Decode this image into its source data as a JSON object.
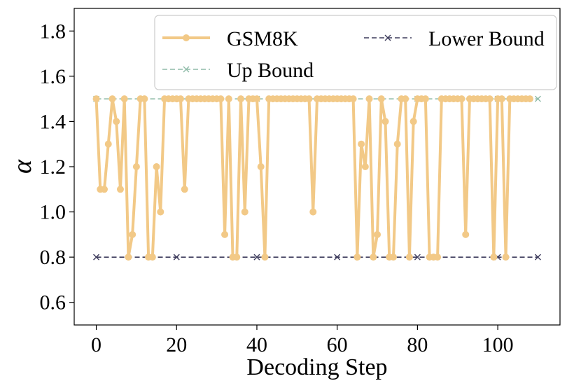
{
  "chart_data": {
    "type": "line",
    "title": "",
    "xlabel": "Decoding Step",
    "ylabel": "α",
    "xlim": [
      -5.5,
      115.5
    ],
    "ylim": [
      0.5,
      1.9
    ],
    "xticks": [
      0,
      20,
      40,
      60,
      80,
      100
    ],
    "yticks": [
      0.6,
      0.8,
      1.0,
      1.2,
      1.4,
      1.6,
      1.8
    ],
    "xtick_labels": [
      "0",
      "20",
      "40",
      "60",
      "80",
      "100"
    ],
    "ytick_labels": [
      "0.6",
      "0.8",
      "1.0",
      "1.2",
      "1.4",
      "1.6",
      "1.8"
    ],
    "grid": false,
    "legend_position": "upper-right",
    "series": [
      {
        "name": "GSM8K",
        "color": "#F2C987",
        "marker": "circle",
        "linestyle": "solid",
        "x": [
          0,
          1,
          2,
          3,
          4,
          5,
          6,
          7,
          8,
          9,
          10,
          11,
          12,
          13,
          14,
          15,
          16,
          17,
          18,
          19,
          20,
          21,
          22,
          23,
          24,
          25,
          26,
          27,
          28,
          29,
          30,
          31,
          32,
          33,
          34,
          35,
          36,
          37,
          38,
          39,
          40,
          41,
          42,
          43,
          44,
          45,
          46,
          47,
          48,
          49,
          50,
          51,
          52,
          53,
          54,
          55,
          56,
          57,
          58,
          59,
          60,
          61,
          62,
          63,
          64,
          65,
          66,
          67,
          68,
          69,
          70,
          71,
          72,
          73,
          74,
          75,
          76,
          77,
          78,
          79,
          80,
          81,
          82,
          83,
          84,
          85,
          86,
          87,
          88,
          89,
          90,
          91,
          92,
          93,
          94,
          95,
          96,
          97,
          98,
          99,
          100,
          101,
          102,
          103,
          104,
          105,
          106,
          107,
          108
        ],
        "y": [
          1.5,
          1.1,
          1.1,
          1.3,
          1.5,
          1.4,
          1.1,
          1.5,
          0.8,
          0.9,
          1.2,
          1.5,
          1.5,
          0.8,
          0.8,
          1.2,
          1.0,
          1.5,
          1.5,
          1.5,
          1.5,
          1.5,
          1.1,
          1.5,
          1.5,
          1.5,
          1.5,
          1.5,
          1.5,
          1.5,
          1.5,
          1.5,
          0.9,
          1.5,
          0.8,
          0.8,
          1.5,
          1.0,
          1.5,
          1.5,
          1.5,
          1.2,
          0.8,
          1.5,
          1.5,
          1.5,
          1.5,
          1.5,
          1.5,
          1.5,
          1.5,
          1.5,
          1.5,
          1.5,
          1.0,
          1.5,
          1.5,
          1.5,
          1.5,
          1.5,
          1.5,
          1.5,
          1.5,
          1.5,
          1.5,
          0.8,
          1.3,
          1.2,
          1.5,
          0.8,
          0.9,
          1.5,
          1.4,
          0.8,
          0.8,
          1.3,
          1.5,
          1.5,
          0.8,
          1.4,
          1.5,
          1.5,
          1.5,
          0.8,
          0.8,
          0.8,
          1.5,
          1.5,
          1.5,
          1.5,
          1.5,
          1.5,
          0.9,
          1.5,
          1.5,
          1.5,
          1.5,
          1.5,
          1.5,
          0.8,
          1.5,
          1.5,
          0.8,
          1.5,
          1.5,
          1.5,
          1.5,
          1.5,
          1.5
        ]
      },
      {
        "name": "Up Bound",
        "color": "#8FBBA8",
        "marker": "x",
        "linestyle": "dashed",
        "x": [
          0,
          20,
          40,
          60,
          80,
          100,
          110
        ],
        "y": [
          1.5,
          1.5,
          1.5,
          1.5,
          1.5,
          1.5,
          1.5
        ]
      },
      {
        "name": "Lower Bound",
        "color": "#3D3B5C",
        "marker": "x",
        "linestyle": "dashed",
        "x": [
          0,
          20,
          40,
          60,
          80,
          100,
          110
        ],
        "y": [
          0.8,
          0.8,
          0.8,
          0.8,
          0.8,
          0.8,
          0.8
        ]
      }
    ]
  }
}
